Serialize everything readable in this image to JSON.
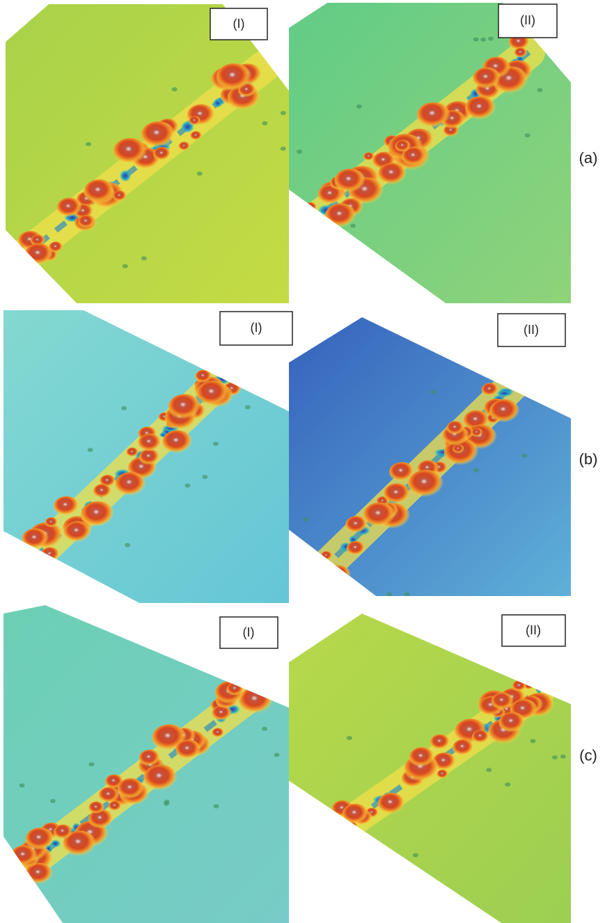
{
  "rows": [
    {
      "label": "(a)",
      "panels": [
        {
          "label": "(I)"
        },
        {
          "label": "(II)"
        }
      ]
    },
    {
      "label": "(b)",
      "panels": [
        {
          "label": "(I)"
        },
        {
          "label": "(II)"
        }
      ]
    },
    {
      "label": "(c)",
      "panels": [
        {
          "label": "(I)"
        },
        {
          "label": "(II)"
        }
      ]
    }
  ]
}
